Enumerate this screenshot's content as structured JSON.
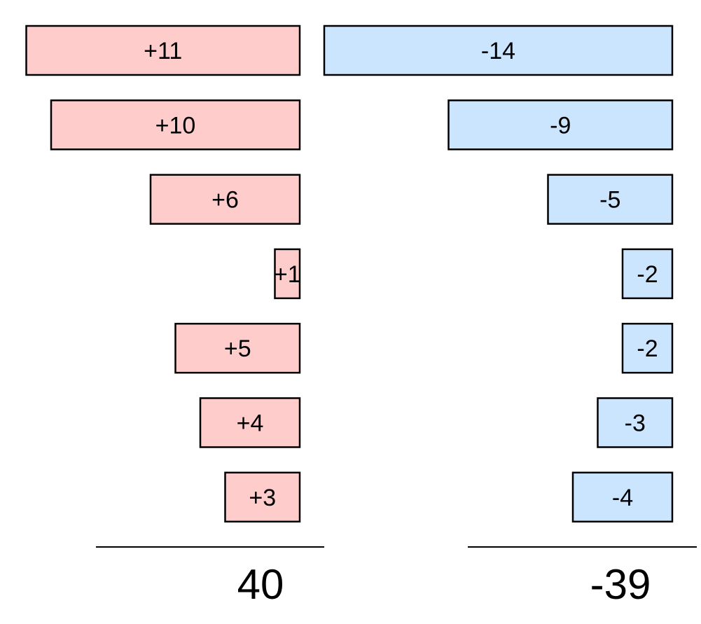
{
  "chart_data": {
    "type": "bar",
    "orientation": "horizontal-diverging",
    "title": "",
    "xlabel": "",
    "ylabel": "",
    "grid": false,
    "legend": "none",
    "series": [
      {
        "values": [
          11,
          10,
          6,
          1,
          5,
          4,
          3
        ],
        "labels": [
          "+11",
          "+10",
          "+6",
          "+1",
          "+5",
          "+4",
          "+3"
        ],
        "color": "#ffcccc",
        "total_label": "40"
      },
      {
        "values": [
          -14,
          -9,
          -5,
          -2,
          -2,
          -3,
          -4
        ],
        "labels": [
          "-14",
          "-9",
          "-5",
          "-2",
          "-2",
          "-3",
          "-4"
        ],
        "color": "#cce5ff",
        "total_label": "-39"
      }
    ],
    "bar_stroke_color": "#000000"
  }
}
